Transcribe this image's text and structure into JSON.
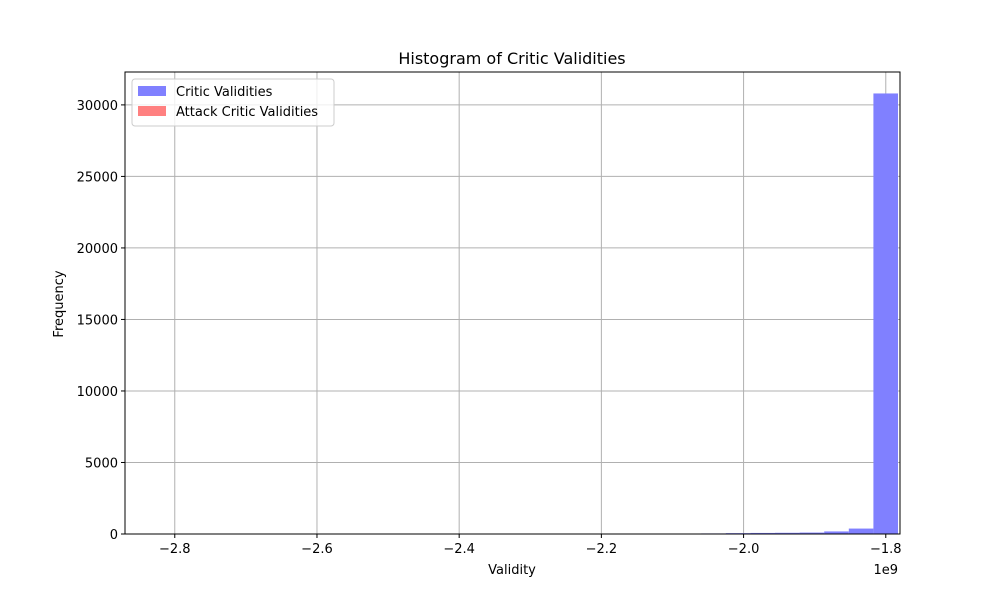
{
  "chart_data": {
    "type": "bar",
    "title": "Histogram of Critic Validities",
    "xlabel": "Validity",
    "ylabel": "Frequency",
    "x_offset_label": "1e9",
    "xlim": [
      -2.87,
      -1.78
    ],
    "ylim": [
      0,
      32300
    ],
    "grid": true,
    "legend_position": "top-left",
    "x_ticks": [
      {
        "value": -2.8,
        "label": "−2.8"
      },
      {
        "value": -2.6,
        "label": "−2.6"
      },
      {
        "value": -2.4,
        "label": "−2.4"
      },
      {
        "value": -2.2,
        "label": "−2.2"
      },
      {
        "value": -2.0,
        "label": "−2.0"
      },
      {
        "value": -1.8,
        "label": "−1.8"
      }
    ],
    "y_ticks": [
      {
        "value": 0,
        "label": "0"
      },
      {
        "value": 5000,
        "label": "5000"
      },
      {
        "value": 10000,
        "label": "10000"
      },
      {
        "value": 15000,
        "label": "15000"
      },
      {
        "value": 20000,
        "label": "20000"
      },
      {
        "value": 25000,
        "label": "25000"
      },
      {
        "value": 30000,
        "label": "30000"
      }
    ],
    "series": [
      {
        "name": "Critic Validities",
        "color": "#8080ff",
        "bins": [
          {
            "x0": -2.1634,
            "x1": -2.1288,
            "count": 10
          },
          {
            "x0": -2.1288,
            "x1": -2.0942,
            "count": 15
          },
          {
            "x0": -2.0942,
            "x1": -2.0596,
            "count": 25
          },
          {
            "x0": -2.0596,
            "x1": -2.025,
            "count": 40
          },
          {
            "x0": -2.025,
            "x1": -1.9904,
            "count": 60
          },
          {
            "x0": -1.9904,
            "x1": -1.9558,
            "count": 75
          },
          {
            "x0": -1.9558,
            "x1": -1.9212,
            "count": 85
          },
          {
            "x0": -1.9212,
            "x1": -1.8866,
            "count": 100
          },
          {
            "x0": -1.8866,
            "x1": -1.852,
            "count": 180
          },
          {
            "x0": -1.852,
            "x1": -1.8174,
            "count": 380
          },
          {
            "x0": -1.8174,
            "x1": -1.7828,
            "count": 30800
          }
        ]
      },
      {
        "name": "Attack Critic Validities",
        "color": "#ff8080",
        "bins": []
      }
    ]
  }
}
